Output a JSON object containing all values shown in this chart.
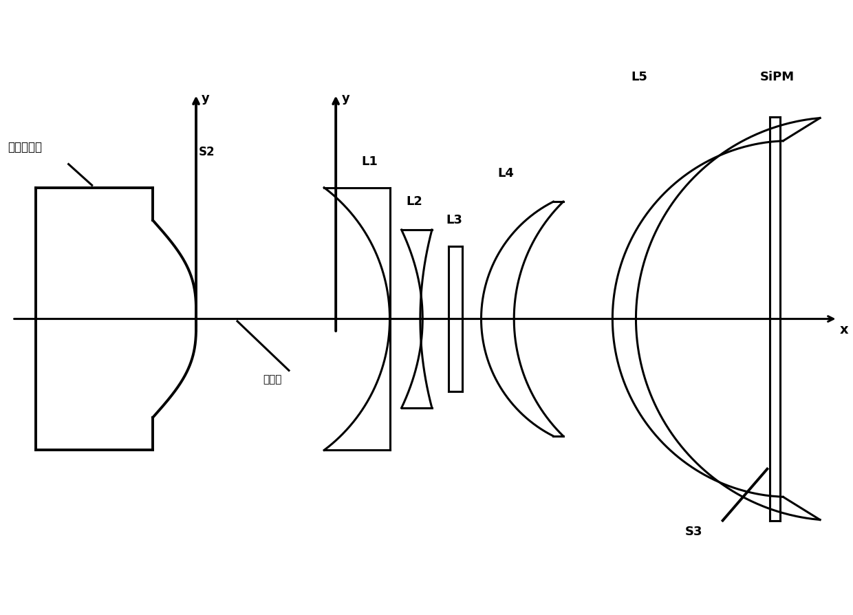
{
  "bg_color": "#ffffff",
  "line_color": "#000000",
  "lw": 2.2,
  "lw_thick": 2.8,
  "fig_width": 12.4,
  "fig_height": 8.95,
  "xlim": [
    -4.2,
    13.8
  ],
  "ylim": [
    -5.0,
    5.5
  ],
  "labels": {
    "yuan_zhu_ti": "圆柱体主体",
    "S2": "S2",
    "zhong_zhou_xian": "中轴线",
    "L1": "L1",
    "L2": "L2",
    "L3": "L3",
    "L4": "L4",
    "L5": "L5",
    "S3": "S3",
    "SiPM": "SiPM",
    "x_label": "x",
    "y_label": "y"
  }
}
